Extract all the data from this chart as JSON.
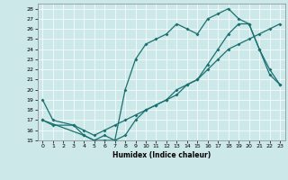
{
  "xlabel": "Humidex (Indice chaleur)",
  "xlim": [
    -0.5,
    23.5
  ],
  "ylim": [
    15,
    28.5
  ],
  "yticks": [
    15,
    16,
    17,
    18,
    19,
    20,
    21,
    22,
    23,
    24,
    25,
    26,
    27,
    28
  ],
  "xticks": [
    0,
    1,
    2,
    3,
    4,
    5,
    6,
    7,
    8,
    9,
    10,
    11,
    12,
    13,
    14,
    15,
    16,
    17,
    18,
    19,
    20,
    21,
    22,
    23
  ],
  "bg_color": "#cce8e8",
  "line_color": "#1a7070",
  "grid_color": "#ffffff",
  "line1_x": [
    0,
    1,
    3,
    4,
    5,
    6,
    7,
    8,
    9,
    10,
    11,
    12,
    13,
    14,
    15,
    16,
    17,
    18,
    19,
    20,
    21,
    22,
    23
  ],
  "line1_y": [
    19,
    17,
    16.5,
    15.5,
    15,
    15.5,
    15,
    20,
    23,
    24.5,
    25,
    25.5,
    26.5,
    26,
    25.5,
    27,
    27.5,
    28,
    27,
    26.5,
    24,
    21.5,
    20.5
  ],
  "line2_x": [
    0,
    1,
    3,
    4,
    5,
    6,
    7,
    8,
    9,
    10,
    11,
    12,
    13,
    14,
    15,
    16,
    17,
    18,
    19,
    20,
    21,
    22,
    23
  ],
  "line2_y": [
    17,
    16.5,
    16.5,
    16,
    15.5,
    16,
    16.5,
    17,
    17.5,
    18,
    18.5,
    19,
    20,
    20.5,
    21,
    22,
    23,
    24,
    24.5,
    25,
    25.5,
    26,
    26.5
  ],
  "line3_x": [
    0,
    4,
    5,
    6,
    7,
    8,
    9,
    10,
    11,
    12,
    13,
    14,
    15,
    16,
    17,
    18,
    19,
    20,
    21,
    22,
    23
  ],
  "line3_y": [
    17,
    15.5,
    15,
    15,
    15,
    15.5,
    17,
    18,
    18.5,
    19,
    19.5,
    20.5,
    21,
    22.5,
    24,
    25.5,
    26.5,
    26.5,
    24,
    22,
    20.5
  ]
}
